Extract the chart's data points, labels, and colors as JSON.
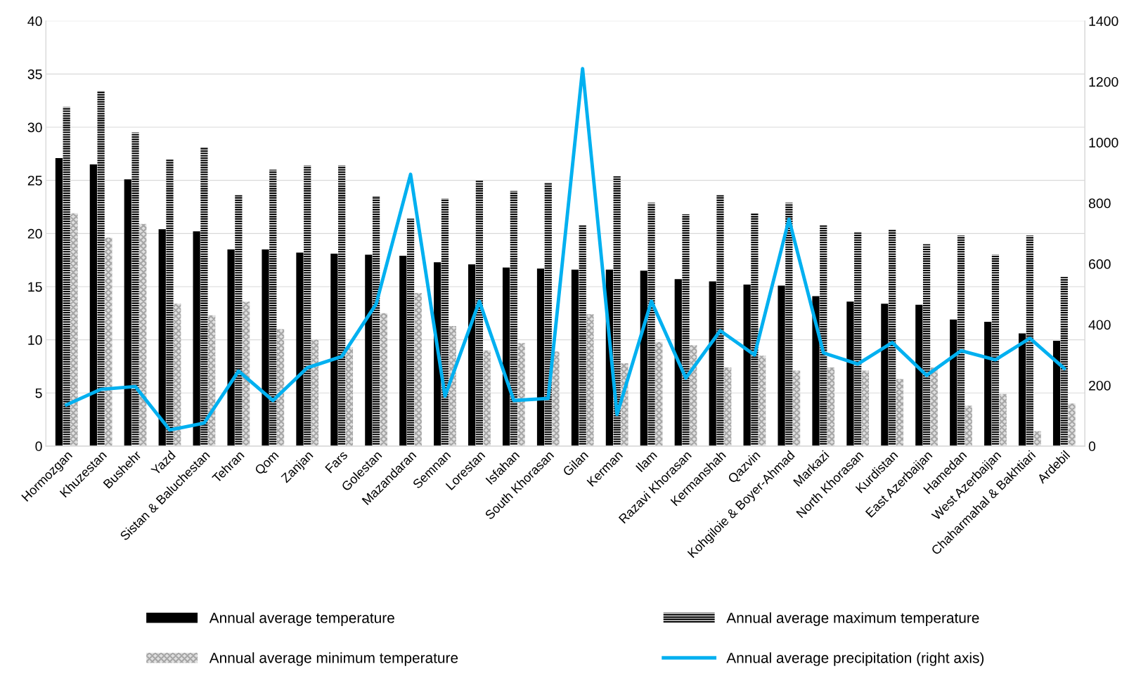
{
  "chart_data": {
    "type": "bar",
    "categories": [
      "Hormozgan",
      "Khuzestan",
      "Bushehr",
      "Yazd",
      "Sistan & Baluchestan",
      "Tehran",
      "Qom",
      "Zanjan",
      "Fars",
      "Golestan",
      "Mazandaran",
      "Semnan",
      "Lorestan",
      "Isfahan",
      "South Khorasan",
      "Gilan",
      "Kerman",
      "Ilam",
      "Razavi Khorasan",
      "Kermanshah",
      "Qazvin",
      "Kohgiloie & Boyer-Ahmad",
      "Markazi",
      "North Khorasan",
      "Kurdistan",
      "East Azerbaijan",
      "Hamedan",
      "West Azerbaijan",
      "Chaharmahal & Bakhtiari",
      "Ardebil"
    ],
    "series": [
      {
        "name": "Annual average temperature",
        "color": "#000000",
        "values": [
          27.1,
          26.5,
          25.1,
          20.4,
          20.2,
          18.5,
          18.5,
          18.2,
          18.1,
          18.0,
          17.9,
          17.3,
          17.1,
          16.8,
          16.7,
          16.6,
          16.6,
          16.5,
          15.7,
          15.5,
          15.2,
          15.1,
          14.1,
          13.6,
          13.4,
          13.3,
          11.9,
          11.7,
          10.6,
          9.9
        ]
      },
      {
        "name": "Annual average maximum temperature",
        "color": "#000000",
        "values": [
          31.9,
          33.4,
          29.5,
          27.0,
          28.1,
          23.6,
          26.0,
          26.4,
          26.4,
          23.5,
          21.4,
          23.3,
          25.0,
          24.0,
          24.8,
          20.8,
          25.4,
          22.9,
          21.8,
          23.6,
          21.9,
          22.9,
          20.8,
          20.1,
          20.4,
          19.0,
          19.8,
          18.0,
          19.8,
          15.9
        ]
      },
      {
        "name": "Annual average minimum temperature",
        "color": "#a6a6a6",
        "values": [
          21.9,
          19.6,
          20.9,
          13.4,
          12.3,
          13.6,
          11.0,
          10.0,
          9.3,
          12.5,
          14.4,
          11.3,
          9.0,
          9.7,
          8.9,
          12.4,
          7.8,
          9.8,
          9.5,
          7.4,
          8.5,
          7.1,
          7.4,
          7.1,
          6.3,
          7.4,
          3.8,
          4.9,
          1.4,
          4.0
        ]
      },
      {
        "name": "Annual average precipitation (right axis)",
        "type": "line",
        "axis": "y2",
        "color": "#00b0f0",
        "values": [
          136,
          187,
          196,
          53,
          76,
          247,
          150,
          258,
          295,
          468,
          895,
          164,
          477,
          150,
          157,
          1243,
          104,
          477,
          224,
          380,
          300,
          747,
          307,
          270,
          341,
          233,
          314,
          284,
          355,
          256
        ]
      }
    ],
    "ylim": [
      0,
      40
    ],
    "yticks": [
      0,
      5,
      10,
      15,
      20,
      25,
      30,
      35,
      40
    ],
    "y2lim": [
      0,
      1400
    ],
    "y2ticks": [
      0,
      200,
      400,
      600,
      800,
      1000,
      1200,
      1400
    ],
    "grid": "y",
    "legend": "bottom",
    "marker": "none",
    "line_style": "solid"
  }
}
